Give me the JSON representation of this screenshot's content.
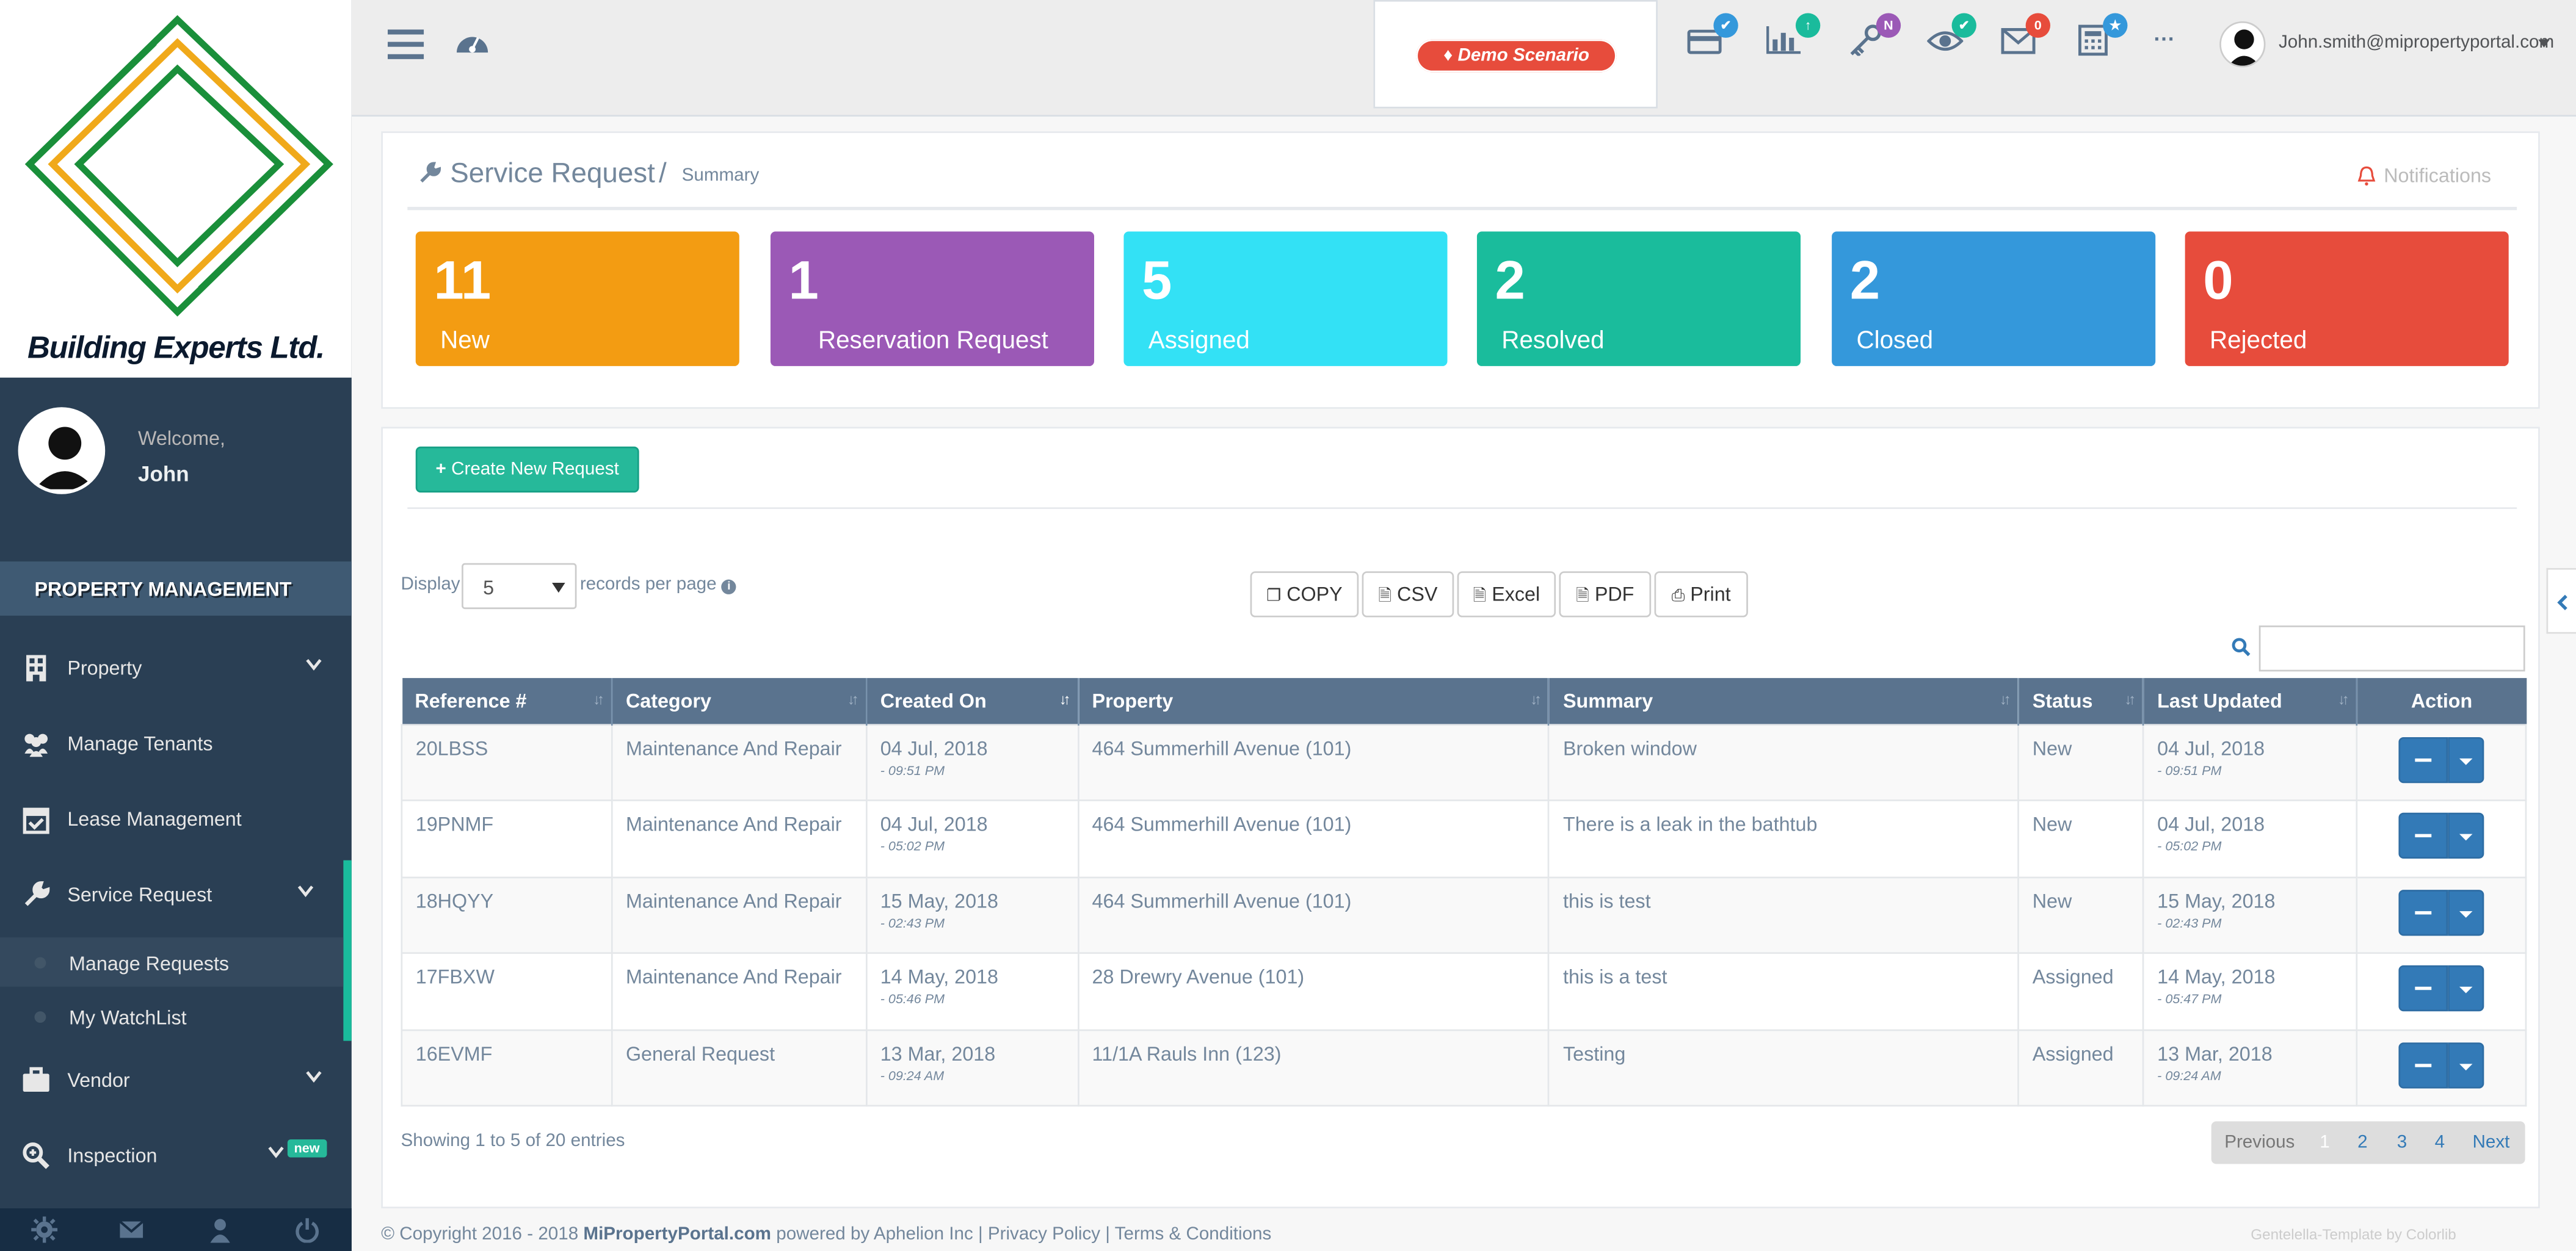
{
  "brand": {
    "name": "Building Experts Ltd."
  },
  "profile": {
    "welcome": "Welcome,",
    "name": "John"
  },
  "sidebar": {
    "section": "PROPERTY MANAGEMENT",
    "items": [
      {
        "label": "Property"
      },
      {
        "label": "Manage Tenants"
      },
      {
        "label": "Lease Management"
      },
      {
        "label": "Service Request"
      },
      {
        "label": "Vendor"
      },
      {
        "label": "Inspection"
      }
    ],
    "subitems": [
      {
        "label": "Manage Requests"
      },
      {
        "label": "My WatchList"
      }
    ],
    "new_badge": "new"
  },
  "topnav": {
    "demo_label": "Demo Scenario",
    "badge_mail": "0",
    "badge_billing": "✔",
    "badge_chart": "↑",
    "badge_key": "N",
    "badge_eye": "✔",
    "badge_calc": "★",
    "more": "···",
    "email": "John.smith@mipropertyportal.com"
  },
  "page": {
    "title": "Service Request",
    "separator": "/",
    "subtitle": "Summary",
    "notifications": "Notifications"
  },
  "tiles": [
    {
      "count": "11",
      "label": "New",
      "color": "#f39c12"
    },
    {
      "count": "1",
      "label": "Reservation Request",
      "color": "#9b59b6"
    },
    {
      "count": "5",
      "label": "Assigned",
      "color": "#33e1f5"
    },
    {
      "count": "2",
      "label": "Resolved",
      "color": "#1abc9c"
    },
    {
      "count": "2",
      "label": "Closed",
      "color": "#3498db"
    },
    {
      "count": "0",
      "label": "Rejected",
      "color": "#e74c3c"
    }
  ],
  "actions": {
    "create": "Create New Request"
  },
  "list_controls": {
    "display": "Display",
    "page_size": "5",
    "records": "records per page",
    "export": {
      "copy": "COPY",
      "csv": "CSV",
      "excel": "Excel",
      "pdf": "PDF",
      "print": "Print"
    }
  },
  "table": {
    "headers": [
      "Reference #",
      "Category",
      "Created On",
      "Property",
      "Summary",
      "Status",
      "Last Updated",
      "Action"
    ],
    "rows": [
      {
        "ref": "20LBSS",
        "category": "Maintenance And Repair",
        "created_date": "04 Jul, 2018",
        "created_time": "- 09:51 PM",
        "property": "464 Summerhill Avenue (101)",
        "summary": "Broken window",
        "status": "New",
        "updated_date": "04 Jul, 2018",
        "updated_time": "- 09:51 PM"
      },
      {
        "ref": "19PNMF",
        "category": "Maintenance And Repair",
        "created_date": "04 Jul, 2018",
        "created_time": "- 05:02 PM",
        "property": "464 Summerhill Avenue (101)",
        "summary": "There is a leak in the bathtub",
        "status": "New",
        "updated_date": "04 Jul, 2018",
        "updated_time": "- 05:02 PM"
      },
      {
        "ref": "18HQYY",
        "category": "Maintenance And Repair",
        "created_date": "15 May, 2018",
        "created_time": "- 02:43 PM",
        "property": "464 Summerhill Avenue (101)",
        "summary": "this is test",
        "status": "New",
        "updated_date": "15 May, 2018",
        "updated_time": "- 02:43 PM"
      },
      {
        "ref": "17FBXW",
        "category": "Maintenance And Repair",
        "created_date": "14 May, 2018",
        "created_time": "- 05:46 PM",
        "property": "28 Drewry Avenue (101)",
        "summary": "this is a test",
        "status": "Assigned",
        "updated_date": "14 May, 2018",
        "updated_time": "- 05:47 PM"
      },
      {
        "ref": "16EVMF",
        "category": "General Request",
        "created_date": "13 Mar, 2018",
        "created_time": "- 09:24 AM",
        "property": "11/1A Rauls Inn (123)",
        "summary": "Testing",
        "status": "Assigned",
        "updated_date": "13 Mar, 2018",
        "updated_time": "- 09:24 AM"
      }
    ]
  },
  "pagination": {
    "showing": "Showing 1 to 5 of 20 entries",
    "previous": "Previous",
    "pages": [
      "1",
      "2",
      "3",
      "4"
    ],
    "next": "Next"
  },
  "footer": {
    "copyright": "© Copyright 2016 - 2018",
    "site": "MiPropertyPortal.com",
    "powered": "powered by Aphelion Inc | Privacy Policy | Terms & Conditions",
    "template": "Gentelella-Template by Colorlib"
  }
}
